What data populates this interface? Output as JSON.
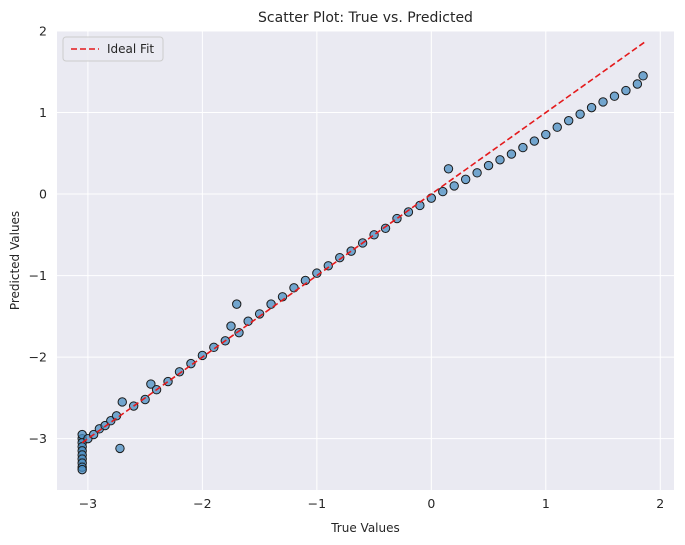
{
  "chart_data": {
    "type": "scatter",
    "title": "Scatter Plot: True vs. Predicted",
    "xlabel": "True Values",
    "ylabel": "Predicted Values",
    "xlim": [
      -3.27,
      2.12
    ],
    "ylim": [
      -3.63,
      2.0
    ],
    "xticks": [
      -3,
      -2,
      -1,
      0,
      1,
      2
    ],
    "yticks": [
      -3,
      -2,
      -1,
      0,
      1,
      2
    ],
    "grid": true,
    "legend": {
      "placement": "top-left",
      "entries": [
        "Ideal Fit"
      ]
    },
    "colors": {
      "background": "#eaeaf2",
      "grid": "#ffffff",
      "points": "#4a8ec2",
      "point_edge": "#1a1a1a",
      "ideal_fit": "#e41a1c"
    },
    "series": [
      {
        "kind": "points",
        "marker": "circle",
        "x": [
          -3.05,
          -3.05,
          -3.05,
          -3.05,
          -3.05,
          -3.05,
          -3.05,
          -3.05,
          -3.05,
          -3.05,
          -3.0,
          -2.95,
          -2.9,
          -2.85,
          -2.8,
          -2.75,
          -2.72,
          -2.7,
          -2.6,
          -2.5,
          -2.45,
          -2.4,
          -2.3,
          -2.2,
          -2.1,
          -2.0,
          -1.9,
          -1.8,
          -1.75,
          -1.7,
          -1.68,
          -1.6,
          -1.5,
          -1.4,
          -1.3,
          -1.2,
          -1.1,
          -1.0,
          -0.9,
          -0.8,
          -0.7,
          -0.6,
          -0.5,
          -0.4,
          -0.3,
          -0.2,
          -0.1,
          0.0,
          0.1,
          0.15,
          0.2,
          0.3,
          0.4,
          0.5,
          0.6,
          0.7,
          0.8,
          0.9,
          1.0,
          1.1,
          1.2,
          1.3,
          1.4,
          1.5,
          1.6,
          1.7,
          1.8,
          1.85
        ],
        "y": [
          -3.0,
          -3.05,
          -3.1,
          -3.15,
          -3.2,
          -3.25,
          -3.3,
          -3.35,
          -3.38,
          -2.95,
          -3.0,
          -2.95,
          -2.88,
          -2.84,
          -2.78,
          -2.72,
          -3.12,
          -2.55,
          -2.6,
          -2.52,
          -2.33,
          -2.4,
          -2.3,
          -2.18,
          -2.08,
          -1.98,
          -1.88,
          -1.8,
          -1.62,
          -1.35,
          -1.7,
          -1.56,
          -1.47,
          -1.35,
          -1.26,
          -1.15,
          -1.06,
          -0.97,
          -0.88,
          -0.78,
          -0.7,
          -0.6,
          -0.5,
          -0.42,
          -0.3,
          -0.22,
          -0.14,
          -0.05,
          0.03,
          0.31,
          0.1,
          0.18,
          0.26,
          0.35,
          0.42,
          0.49,
          0.57,
          0.65,
          0.73,
          0.82,
          0.9,
          0.98,
          1.06,
          1.13,
          1.2,
          1.27,
          1.35,
          1.45
        ]
      },
      {
        "kind": "line",
        "name": "Ideal Fit",
        "style": "dashed",
        "x": [
          -3.05,
          1.88
        ],
        "y": [
          -3.05,
          1.88
        ]
      }
    ]
  }
}
